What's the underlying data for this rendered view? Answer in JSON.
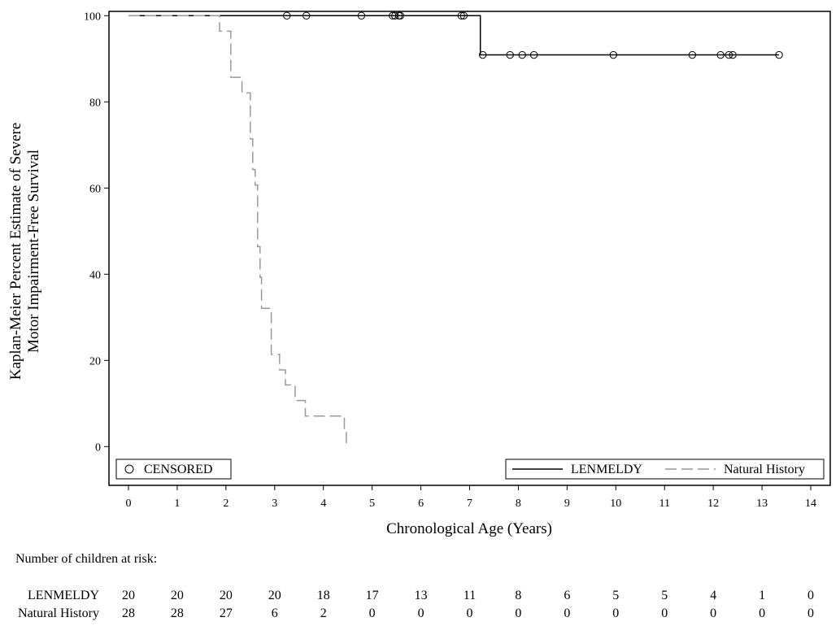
{
  "chart_data": {
    "type": "line",
    "subtype": "kaplan-meier",
    "title": "",
    "xlabel": "Chronological Age (Years)",
    "ylabel": [
      "Kaplan-Meier Percent Estimate of Severe",
      "Motor Impairment-Free Survival"
    ],
    "xlim": [
      -0.4,
      14.4
    ],
    "ylim": [
      -9,
      101
    ],
    "xticks": [
      "0",
      "1",
      "2",
      "3",
      "4",
      "5",
      "6",
      "7",
      "8",
      "9",
      "10",
      "11",
      "12",
      "13",
      "14"
    ],
    "yticks": [
      "0",
      "20",
      "40",
      "60",
      "80",
      "100"
    ],
    "grid": false,
    "legend_placement": "bottom",
    "censored_legend_label": "CENSORED",
    "series": [
      {
        "name": "LENMELDY",
        "style": "solid",
        "color": "#000000",
        "steps": [
          [
            0,
            100
          ],
          [
            7.22,
            100
          ],
          [
            7.22,
            90.9
          ],
          [
            13.35,
            90.9
          ]
        ],
        "censored": [
          [
            3.25,
            100
          ],
          [
            3.65,
            100
          ],
          [
            4.78,
            100
          ],
          [
            5.42,
            100
          ],
          [
            5.47,
            100
          ],
          [
            5.55,
            100
          ],
          [
            5.58,
            100
          ],
          [
            6.83,
            100
          ],
          [
            6.88,
            100
          ],
          [
            7.27,
            90.9
          ],
          [
            7.83,
            90.9
          ],
          [
            8.08,
            90.9
          ],
          [
            8.32,
            90.9
          ],
          [
            9.95,
            90.9
          ],
          [
            11.57,
            90.9
          ],
          [
            12.15,
            90.9
          ],
          [
            12.32,
            90.9
          ],
          [
            12.4,
            90.9
          ],
          [
            13.35,
            90.9
          ]
        ]
      },
      {
        "name": "Natural History",
        "style": "dashed",
        "color": "#999999",
        "steps": [
          [
            0,
            100
          ],
          [
            1.87,
            100
          ],
          [
            1.87,
            96.4
          ],
          [
            2.1,
            96.4
          ],
          [
            2.1,
            85.7
          ],
          [
            2.33,
            85.7
          ],
          [
            2.33,
            82.1
          ],
          [
            2.5,
            82.1
          ],
          [
            2.5,
            71.4
          ],
          [
            2.55,
            71.4
          ],
          [
            2.55,
            64.3
          ],
          [
            2.6,
            64.3
          ],
          [
            2.6,
            60.7
          ],
          [
            2.65,
            60.7
          ],
          [
            2.65,
            46.4
          ],
          [
            2.7,
            46.4
          ],
          [
            2.7,
            39.3
          ],
          [
            2.73,
            39.3
          ],
          [
            2.73,
            32.1
          ],
          [
            2.93,
            32.1
          ],
          [
            2.93,
            21.4
          ],
          [
            3.1,
            21.4
          ],
          [
            3.1,
            17.8
          ],
          [
            3.22,
            17.8
          ],
          [
            3.22,
            14.3
          ],
          [
            3.42,
            14.3
          ],
          [
            3.42,
            10.7
          ],
          [
            3.63,
            10.7
          ],
          [
            3.63,
            7.1
          ],
          [
            4.43,
            7.1
          ],
          [
            4.43,
            3.6
          ],
          [
            4.47,
            3.6
          ],
          [
            4.47,
            0
          ]
        ],
        "censored": []
      }
    ],
    "risk_table": {
      "title": "Number of children at risk:",
      "times": [
        0,
        1,
        2,
        3,
        4,
        5,
        6,
        7,
        8,
        9,
        10,
        11,
        12,
        13,
        14
      ],
      "rows": [
        {
          "name": "LENMELDY",
          "values": [
            "20",
            "20",
            "20",
            "20",
            "18",
            "17",
            "13",
            "11",
            "8",
            "6",
            "5",
            "5",
            "4",
            "1",
            "0"
          ]
        },
        {
          "name": "Natural History",
          "values": [
            "28",
            "28",
            "27",
            "6",
            "2",
            "0",
            "0",
            "0",
            "0",
            "0",
            "0",
            "0",
            "0",
            "0",
            "0"
          ]
        }
      ]
    }
  }
}
